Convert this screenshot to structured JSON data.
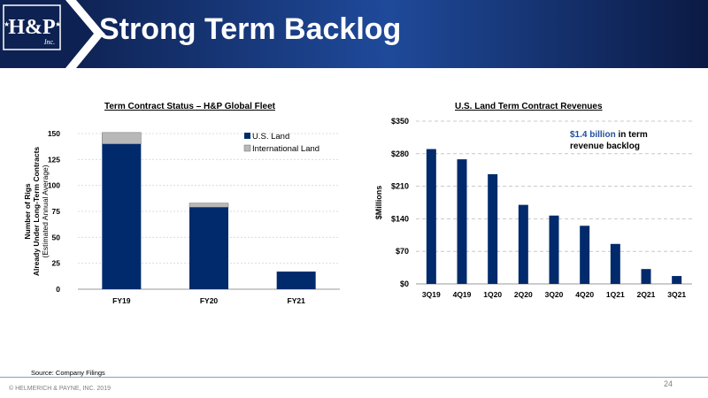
{
  "slide": {
    "title": "Strong Term Backlog",
    "source": "Source: Company Filings",
    "copyright": "© HELMERICH & PAYNE, INC. 2019",
    "page_number": "24",
    "logo_text": "H&P Inc.",
    "colors": {
      "header_dark": "#0b1a44",
      "header_mid": "#1f4a9a",
      "accent_chevron": "#ffffff",
      "bar": "#002a6c",
      "bar_intl": "#b8b8b8",
      "annotation_blue": "#1f4e9c"
    }
  },
  "chart_data": [
    {
      "type": "bar",
      "stacked": true,
      "title": "Term Contract Status – H&P Global Fleet",
      "ylabel": [
        "Number of Rigs",
        "Already Under Long-Term Contracts",
        "(Estimated Annual Average)"
      ],
      "categories": [
        "FY19",
        "FY20",
        "FY21"
      ],
      "series": [
        {
          "name": "U.S. Land",
          "values": [
            140,
            79,
            17
          ],
          "color": "#002a6c"
        },
        {
          "name": "International Land",
          "values": [
            11,
            4,
            0
          ],
          "color": "#b8b8b8"
        }
      ],
      "ylim": [
        0,
        150
      ],
      "yticks": [
        "0",
        "25",
        "50",
        "75",
        "100",
        "125",
        "150"
      ],
      "legend": "top-right",
      "grid": true
    },
    {
      "type": "bar",
      "title": "U.S. Land Term Contract Revenues",
      "ylabel": "$Millions",
      "categories": [
        "3Q19",
        "4Q19",
        "1Q20",
        "2Q20",
        "3Q20",
        "4Q20",
        "1Q21",
        "2Q21",
        "3Q21"
      ],
      "values": [
        290,
        268,
        236,
        170,
        147,
        125,
        86,
        32,
        17
      ],
      "color": "#002a6c",
      "ylim": [
        0,
        350
      ],
      "yticks": [
        "$0",
        "$70",
        "$140",
        "$210",
        "$280",
        "$350"
      ],
      "grid": true,
      "annotation": {
        "highlight": "$1.4 billion",
        "rest_line1": " in term",
        "line2": "revenue backlog"
      }
    }
  ]
}
